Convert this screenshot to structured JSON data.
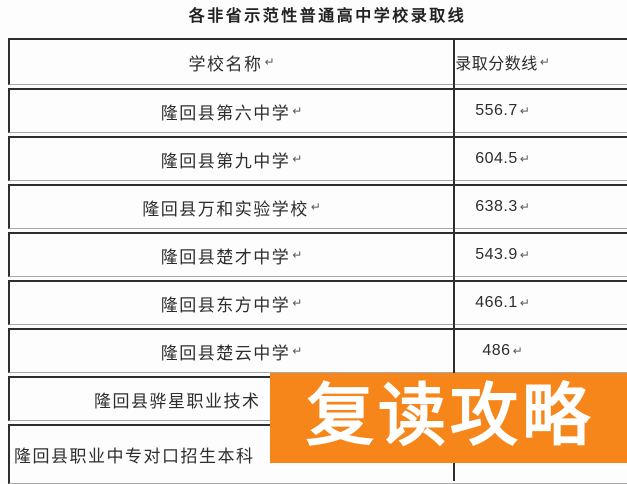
{
  "title": "各非省示范性普通高中学校录取线",
  "table": {
    "headers": {
      "school": "学校名称",
      "score": "录取分数线"
    },
    "return_mark": "↵",
    "rows": [
      {
        "school": "隆回县第六中学",
        "score": "556.7"
      },
      {
        "school": "隆回县第九中学",
        "score": "604.5"
      },
      {
        "school": "隆回县万和实验学校",
        "score": "638.3"
      },
      {
        "school": "隆回县楚才中学",
        "score": "543.9"
      },
      {
        "school": "隆回县东方中学",
        "score": "466.1"
      },
      {
        "school": "隆回县楚云中学",
        "score": "486"
      },
      {
        "school": "隆回县骅星职业技术",
        "score": ""
      },
      {
        "school": "隆回县职业中专对口招生本科",
        "score": ""
      }
    ]
  },
  "overlay": {
    "label": "复读攻略",
    "background": "#F6861A",
    "text_color": "#FFFFFF"
  }
}
